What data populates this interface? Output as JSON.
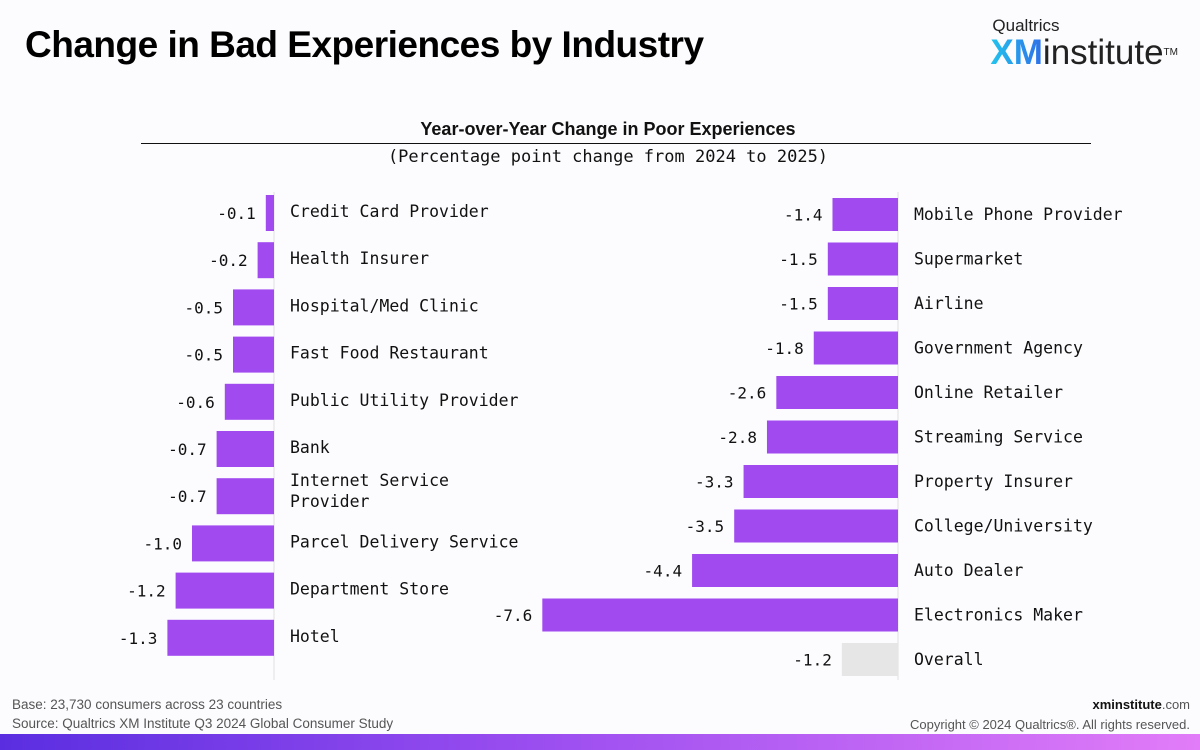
{
  "header": {
    "title": "Change in Bad Experiences by Industry",
    "logo_top": "Qualtrics",
    "logo_xm": "XM",
    "logo_institute": "institute",
    "logo_tm": "TM"
  },
  "colors": {
    "bar": "#a14af0",
    "overall_bar": "#e6e6e6",
    "axis": "#e0e0e0"
  },
  "chart_data": {
    "type": "bar",
    "orientation": "horizontal",
    "title": "Year-over-Year Change in Poor Experiences",
    "subtitle": "(Percentage point change from 2024 to 2025)",
    "xlabel": "",
    "ylabel": "",
    "grid": false,
    "panels": [
      {
        "name": "left",
        "categories": [
          "Credit Card Provider",
          "Health Insurer",
          "Hospital/Med Clinic",
          "Fast Food Restaurant",
          "Public Utility Provider",
          "Bank",
          "Internet Service Provider",
          "Parcel Delivery Service",
          "Department Store",
          "Hotel"
        ],
        "values": [
          -0.1,
          -0.2,
          -0.5,
          -0.5,
          -0.6,
          -0.7,
          -0.7,
          -1.0,
          -1.2,
          -1.3
        ],
        "labels": [
          "-0.1",
          "-0.2",
          "-0.5",
          "-0.5",
          "-0.6",
          "-0.7",
          "-0.7",
          "-1.0",
          "-1.2",
          "-1.3"
        ],
        "xlim": [
          -1.3,
          0
        ]
      },
      {
        "name": "right",
        "categories": [
          "Mobile Phone Provider",
          "Supermarket",
          "Airline",
          "Government Agency",
          "Online Retailer",
          "Streaming Service",
          "Property Insurer",
          "College/University",
          "Auto Dealer",
          "Electronics Maker",
          "Overall"
        ],
        "values": [
          -1.4,
          -1.5,
          -1.5,
          -1.8,
          -2.6,
          -2.8,
          -3.3,
          -3.5,
          -4.4,
          -7.6,
          -1.2
        ],
        "labels": [
          "-1.4",
          "-1.5",
          "-1.5",
          "-1.8",
          "-2.6",
          "-2.8",
          "-3.3",
          "-3.5",
          "-4.4",
          "-7.6",
          "-1.2"
        ],
        "highlight": [
          "Overall"
        ],
        "xlim": [
          -7.6,
          0
        ]
      }
    ]
  },
  "footer": {
    "base": "Base: 23,730 consumers across 23 countries",
    "source": "Source: Qualtrics XM Institute Q3 2024 Global Consumer Study",
    "site_bold": "xminstitute",
    "site_rest": ".com",
    "copyright": "Copyright © 2024 Qualtrics®. All rights reserved."
  }
}
